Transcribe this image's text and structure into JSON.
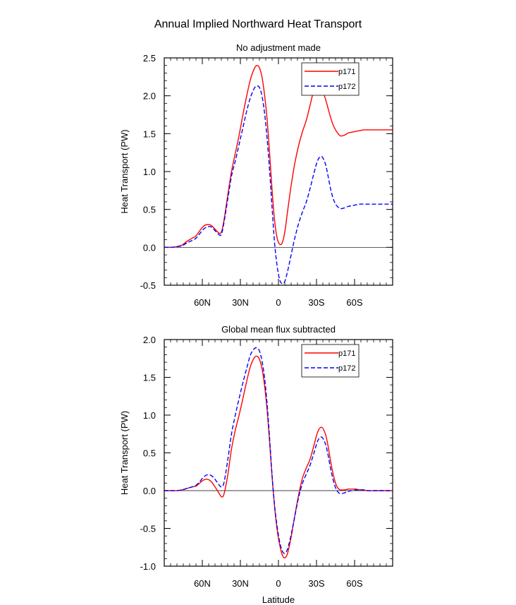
{
  "figure_title": "Annual Implied Northward Heat Transport",
  "chart_data": [
    {
      "type": "line",
      "title": "No adjustment made",
      "xlabel": "",
      "ylabel": "Heat Transport (PW)",
      "xlim": [
        90,
        -90
      ],
      "ylim": [
        -0.5,
        2.5
      ],
      "y_ticks": [
        -0.5,
        0.0,
        0.5,
        1.0,
        1.5,
        2.0,
        2.5
      ],
      "y_tick_labels": [
        "-0.5",
        "0.0",
        "0.5",
        "1.0",
        "1.5",
        "2.0",
        "2.5"
      ],
      "x_ticks": [
        60,
        30,
        0,
        -30,
        -60
      ],
      "x_tick_labels": [
        "60N",
        "30N",
        "0",
        "30S",
        "60S"
      ],
      "zero_line": true,
      "legend_position": "top-right",
      "series": [
        {
          "name": "p171",
          "color": "#ff0000",
          "dash": "solid",
          "x": [
            90,
            84,
            80,
            76,
            72,
            68,
            65,
            62,
            59,
            56,
            53,
            50,
            47,
            45,
            43,
            40,
            37,
            34,
            31,
            28,
            25,
            22,
            19,
            17,
            15,
            13,
            11,
            9,
            7,
            5,
            3,
            1,
            -1,
            -3,
            -5,
            -7,
            -9,
            -11,
            -13,
            -16,
            -19,
            -22,
            -25,
            -28,
            -31,
            -34,
            -37,
            -39,
            -41,
            -43,
            -45,
            -47,
            -49,
            -52,
            -55,
            -58,
            -61,
            -64,
            -67,
            -70,
            -75,
            -80,
            -85,
            -90
          ],
          "y": [
            0.0,
            0.0,
            0.01,
            0.03,
            0.08,
            0.12,
            0.15,
            0.22,
            0.28,
            0.3,
            0.29,
            0.24,
            0.19,
            0.2,
            0.35,
            0.68,
            1.0,
            1.24,
            1.48,
            1.75,
            2.0,
            2.22,
            2.36,
            2.4,
            2.37,
            2.25,
            2.02,
            1.7,
            1.25,
            0.75,
            0.35,
            0.12,
            0.04,
            0.06,
            0.2,
            0.45,
            0.7,
            0.92,
            1.12,
            1.35,
            1.53,
            1.68,
            1.88,
            2.08,
            2.15,
            2.1,
            1.96,
            1.84,
            1.72,
            1.62,
            1.55,
            1.5,
            1.47,
            1.48,
            1.51,
            1.52,
            1.53,
            1.54,
            1.55,
            1.55,
            1.55,
            1.55,
            1.55,
            1.55
          ]
        },
        {
          "name": "p172",
          "color": "#0000ff",
          "dash": "dashed",
          "x": [
            90,
            84,
            80,
            76,
            72,
            68,
            65,
            62,
            59,
            56,
            53,
            50,
            47,
            45,
            43,
            40,
            37,
            34,
            31,
            28,
            25,
            22,
            19,
            17,
            15,
            13,
            11,
            9,
            7,
            5,
            3,
            1,
            -1,
            -3,
            -5,
            -7,
            -9,
            -11,
            -13,
            -16,
            -19,
            -22,
            -25,
            -28,
            -31,
            -34,
            -37,
            -39,
            -41,
            -43,
            -45,
            -47,
            -49,
            -52,
            -55,
            -58,
            -61,
            -64,
            -67,
            -70,
            -75,
            -80,
            -85,
            -90
          ],
          "y": [
            0.0,
            0.0,
            0.01,
            0.02,
            0.06,
            0.09,
            0.12,
            0.18,
            0.24,
            0.27,
            0.27,
            0.22,
            0.17,
            0.17,
            0.32,
            0.63,
            0.94,
            1.14,
            1.36,
            1.58,
            1.8,
            1.98,
            2.1,
            2.13,
            2.11,
            2.0,
            1.78,
            1.45,
            1.02,
            0.52,
            0.05,
            -0.25,
            -0.43,
            -0.48,
            -0.45,
            -0.33,
            -0.18,
            -0.02,
            0.13,
            0.32,
            0.47,
            0.6,
            0.78,
            0.98,
            1.15,
            1.2,
            1.1,
            0.95,
            0.78,
            0.65,
            0.57,
            0.53,
            0.51,
            0.52,
            0.54,
            0.55,
            0.56,
            0.57,
            0.57,
            0.57,
            0.57,
            0.57,
            0.57,
            0.57
          ]
        }
      ]
    },
    {
      "type": "line",
      "title": "Global mean flux subtracted",
      "xlabel": "Latitude",
      "ylabel": "Heat Transport (PW)",
      "xlim": [
        90,
        -90
      ],
      "ylim": [
        -1.0,
        2.0
      ],
      "y_ticks": [
        -1.0,
        -0.5,
        0.0,
        0.5,
        1.0,
        1.5,
        2.0
      ],
      "y_tick_labels": [
        "-1.0",
        "-0.5",
        "0.0",
        "0.5",
        "1.0",
        "1.5",
        "2.0"
      ],
      "x_ticks": [
        60,
        30,
        0,
        -30,
        -60
      ],
      "x_tick_labels": [
        "60N",
        "30N",
        "0",
        "30S",
        "60S"
      ],
      "zero_line": true,
      "legend_position": "top-right",
      "series": [
        {
          "name": "p171",
          "color": "#ff0000",
          "dash": "solid",
          "x": [
            90,
            84,
            80,
            76,
            72,
            68,
            65,
            62,
            59,
            56,
            53,
            50,
            47,
            45,
            43,
            40,
            37,
            34,
            31,
            28,
            25,
            22,
            19,
            17,
            15,
            13,
            11,
            9,
            7,
            5,
            3,
            1,
            -1,
            -3,
            -5,
            -7,
            -9,
            -11,
            -13,
            -16,
            -19,
            -22,
            -25,
            -28,
            -31,
            -34,
            -37,
            -39,
            -41,
            -43,
            -45,
            -47,
            -49,
            -52,
            -55,
            -58,
            -61,
            -64,
            -67,
            -70,
            -75,
            -80,
            -85,
            -90
          ],
          "y": [
            0.0,
            0.0,
            0.0,
            0.01,
            0.03,
            0.05,
            0.06,
            0.1,
            0.14,
            0.15,
            0.12,
            0.05,
            -0.03,
            -0.08,
            -0.05,
            0.2,
            0.55,
            0.8,
            1.0,
            1.22,
            1.45,
            1.65,
            1.76,
            1.78,
            1.74,
            1.62,
            1.4,
            1.08,
            0.65,
            0.18,
            -0.22,
            -0.52,
            -0.72,
            -0.85,
            -0.89,
            -0.84,
            -0.7,
            -0.52,
            -0.32,
            -0.05,
            0.17,
            0.3,
            0.42,
            0.6,
            0.78,
            0.84,
            0.75,
            0.6,
            0.4,
            0.23,
            0.1,
            0.03,
            0.01,
            0.01,
            0.02,
            0.02,
            0.02,
            0.01,
            0.01,
            0.0,
            0.0,
            0.0,
            0.0,
            0.0
          ]
        },
        {
          "name": "p172",
          "color": "#0000ff",
          "dash": "dashed",
          "x": [
            90,
            84,
            80,
            76,
            72,
            68,
            65,
            62,
            59,
            56,
            53,
            50,
            47,
            45,
            43,
            40,
            37,
            34,
            31,
            28,
            25,
            22,
            19,
            17,
            15,
            13,
            11,
            9,
            7,
            5,
            3,
            1,
            -1,
            -3,
            -5,
            -7,
            -9,
            -11,
            -13,
            -16,
            -19,
            -22,
            -25,
            -28,
            -31,
            -34,
            -37,
            -39,
            -41,
            -43,
            -45,
            -47,
            -49,
            -52,
            -55,
            -58,
            -61,
            -64,
            -67,
            -70,
            -75,
            -80,
            -85,
            -90
          ],
          "y": [
            0.0,
            0.0,
            0.0,
            0.01,
            0.03,
            0.05,
            0.07,
            0.12,
            0.18,
            0.21,
            0.2,
            0.15,
            0.08,
            0.05,
            0.1,
            0.4,
            0.75,
            1.0,
            1.22,
            1.43,
            1.62,
            1.8,
            1.88,
            1.89,
            1.85,
            1.72,
            1.5,
            1.16,
            0.7,
            0.2,
            -0.2,
            -0.48,
            -0.68,
            -0.8,
            -0.83,
            -0.78,
            -0.66,
            -0.5,
            -0.33,
            -0.08,
            0.1,
            0.22,
            0.34,
            0.5,
            0.66,
            0.71,
            0.62,
            0.48,
            0.3,
            0.15,
            0.04,
            -0.02,
            -0.04,
            -0.03,
            -0.01,
            0.0,
            0.01,
            0.01,
            0.01,
            0.0,
            0.0,
            0.0,
            0.0,
            0.0
          ]
        }
      ]
    }
  ]
}
